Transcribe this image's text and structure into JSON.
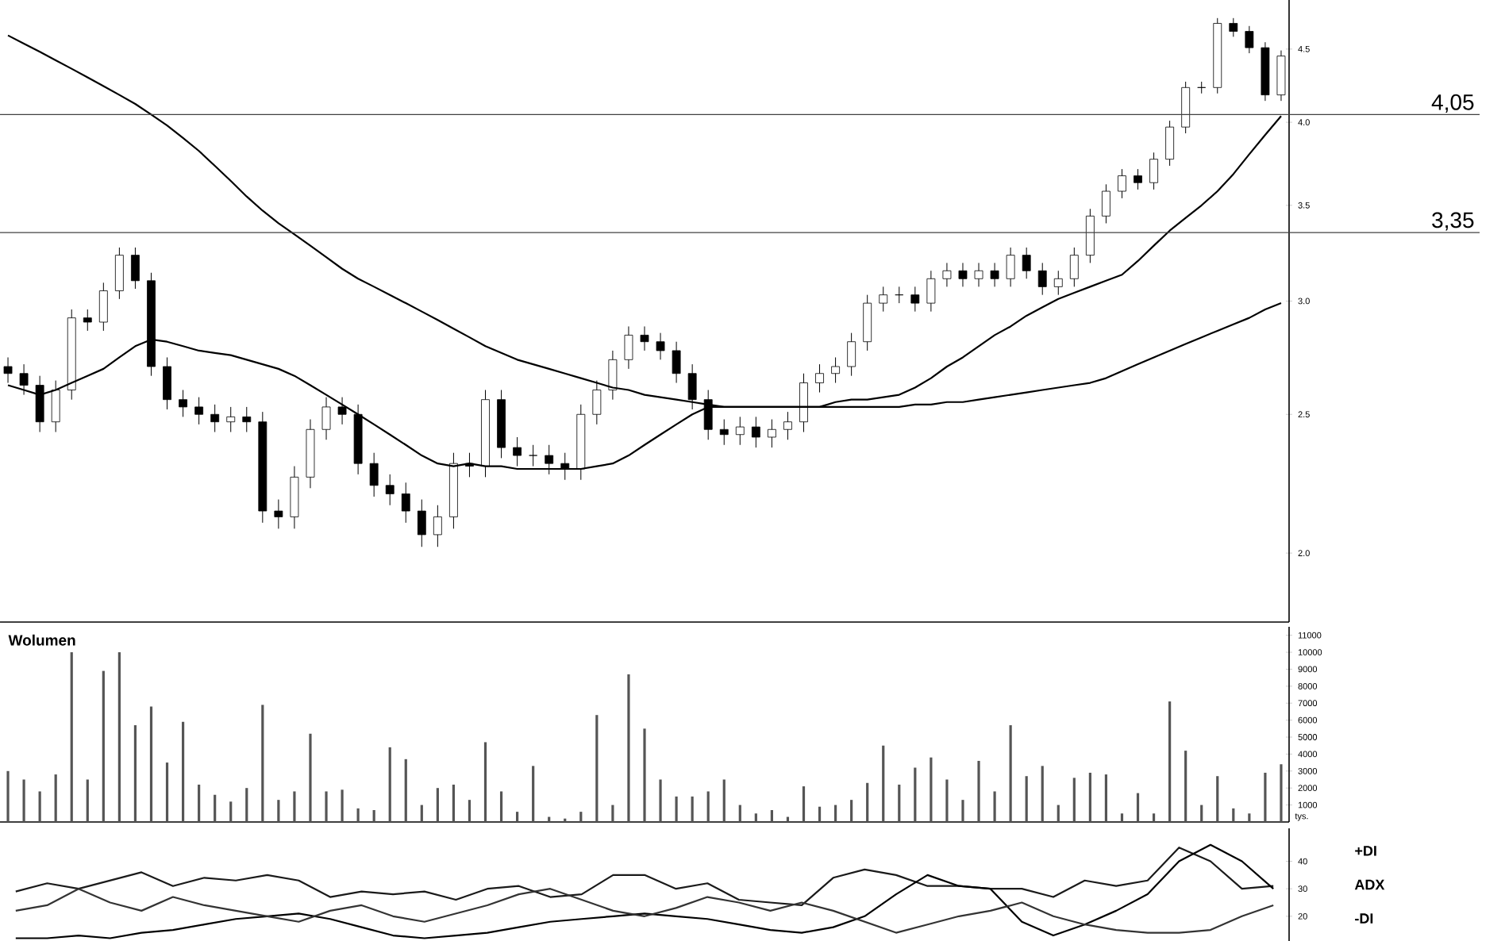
{
  "chart_data": [
    {
      "type": "candlestick",
      "log": "y",
      "tick_labels": "y",
      "categories": [
        null,
        null,
        null,
        null,
        null,
        null,
        null,
        null,
        null,
        null,
        null,
        null,
        null,
        null,
        null,
        null,
        null,
        null,
        null,
        null,
        null,
        null,
        null,
        null,
        null,
        null,
        null,
        null,
        null,
        null,
        null,
        null,
        null,
        null,
        null,
        null,
        null,
        null,
        null,
        null,
        null,
        null,
        null,
        null,
        null,
        null,
        null,
        null,
        null,
        null,
        null,
        null,
        null,
        null,
        null,
        null,
        null,
        null,
        null,
        null,
        null,
        null,
        null,
        null,
        null,
        null,
        null,
        null,
        null,
        null,
        null,
        null,
        null,
        null,
        null,
        null,
        null,
        null,
        null,
        null,
        null
      ],
      "ohlc": [
        [
          2.7,
          2.74,
          2.63,
          2.67
        ],
        [
          2.67,
          2.71,
          2.58,
          2.62
        ],
        [
          2.62,
          2.66,
          2.43,
          2.47
        ],
        [
          2.47,
          2.64,
          2.43,
          2.6
        ],
        [
          2.6,
          2.96,
          2.56,
          2.92
        ],
        [
          2.92,
          2.96,
          2.86,
          2.9
        ],
        [
          2.9,
          3.09,
          2.86,
          3.05
        ],
        [
          3.05,
          3.27,
          3.01,
          3.23
        ],
        [
          3.23,
          3.27,
          3.06,
          3.1
        ],
        [
          3.1,
          3.14,
          2.66,
          2.7
        ],
        [
          2.7,
          2.74,
          2.52,
          2.56
        ],
        [
          2.56,
          2.6,
          2.49,
          2.53
        ],
        [
          2.53,
          2.57,
          2.46,
          2.5
        ],
        [
          2.5,
          2.54,
          2.43,
          2.47
        ],
        [
          2.47,
          2.53,
          2.43,
          2.49
        ],
        [
          2.49,
          2.53,
          2.43,
          2.47
        ],
        [
          2.47,
          2.51,
          2.1,
          2.14
        ],
        [
          2.14,
          2.18,
          2.08,
          2.12
        ],
        [
          2.12,
          2.3,
          2.08,
          2.26
        ],
        [
          2.26,
          2.48,
          2.22,
          2.44
        ],
        [
          2.44,
          2.57,
          2.4,
          2.53
        ],
        [
          2.53,
          2.57,
          2.46,
          2.5
        ],
        [
          2.5,
          2.54,
          2.27,
          2.31
        ],
        [
          2.31,
          2.35,
          2.19,
          2.23
        ],
        [
          2.23,
          2.27,
          2.16,
          2.2
        ],
        [
          2.2,
          2.24,
          2.1,
          2.14
        ],
        [
          2.14,
          2.18,
          2.02,
          2.06
        ],
        [
          2.06,
          2.16,
          2.02,
          2.12
        ],
        [
          2.12,
          2.35,
          2.08,
          2.31
        ],
        [
          2.31,
          2.35,
          2.26,
          2.3
        ],
        [
          2.3,
          2.6,
          2.26,
          2.56
        ],
        [
          2.56,
          2.6,
          2.33,
          2.37
        ],
        [
          2.37,
          2.41,
          2.3,
          2.34
        ],
        [
          2.34,
          2.38,
          2.3,
          2.34
        ],
        [
          2.34,
          2.38,
          2.27,
          2.31
        ],
        [
          2.31,
          2.35,
          2.25,
          2.29
        ],
        [
          2.29,
          2.54,
          2.25,
          2.5
        ],
        [
          2.5,
          2.64,
          2.46,
          2.6
        ],
        [
          2.6,
          2.77,
          2.56,
          2.73
        ],
        [
          2.73,
          2.88,
          2.69,
          2.84
        ],
        [
          2.84,
          2.88,
          2.77,
          2.81
        ],
        [
          2.81,
          2.85,
          2.73,
          2.77
        ],
        [
          2.77,
          2.81,
          2.63,
          2.67
        ],
        [
          2.67,
          2.71,
          2.52,
          2.56
        ],
        [
          2.56,
          2.6,
          2.4,
          2.44
        ],
        [
          2.44,
          2.48,
          2.38,
          2.42
        ],
        [
          2.42,
          2.49,
          2.38,
          2.45
        ],
        [
          2.45,
          2.49,
          2.37,
          2.41
        ],
        [
          2.41,
          2.48,
          2.37,
          2.44
        ],
        [
          2.44,
          2.51,
          2.4,
          2.47
        ],
        [
          2.47,
          2.67,
          2.43,
          2.63
        ],
        [
          2.63,
          2.71,
          2.59,
          2.67
        ],
        [
          2.67,
          2.74,
          2.63,
          2.7
        ],
        [
          2.7,
          2.85,
          2.66,
          2.81
        ],
        [
          2.81,
          3.03,
          2.77,
          2.99
        ],
        [
          2.99,
          3.07,
          2.95,
          3.03
        ],
        [
          3.03,
          3.07,
          2.99,
          3.03
        ],
        [
          3.03,
          3.07,
          2.95,
          2.99
        ],
        [
          2.99,
          3.15,
          2.95,
          3.11
        ],
        [
          3.11,
          3.19,
          3.07,
          3.15
        ],
        [
          3.15,
          3.19,
          3.07,
          3.11
        ],
        [
          3.11,
          3.19,
          3.07,
          3.15
        ],
        [
          3.15,
          3.19,
          3.07,
          3.11
        ],
        [
          3.11,
          3.27,
          3.07,
          3.23
        ],
        [
          3.23,
          3.27,
          3.11,
          3.15
        ],
        [
          3.15,
          3.19,
          3.03,
          3.07
        ],
        [
          3.07,
          3.15,
          3.03,
          3.11
        ],
        [
          3.11,
          3.27,
          3.07,
          3.23
        ],
        [
          3.23,
          3.48,
          3.19,
          3.44
        ],
        [
          3.44,
          3.62,
          3.4,
          3.58
        ],
        [
          3.58,
          3.71,
          3.54,
          3.67
        ],
        [
          3.67,
          3.71,
          3.59,
          3.63
        ],
        [
          3.63,
          3.81,
          3.59,
          3.77
        ],
        [
          3.77,
          4.01,
          3.73,
          3.97
        ],
        [
          3.97,
          4.27,
          3.93,
          4.23
        ],
        [
          4.23,
          4.27,
          4.19,
          4.23
        ],
        [
          4.23,
          4.73,
          4.19,
          4.69
        ],
        [
          4.69,
          4.73,
          4.59,
          4.63
        ],
        [
          4.63,
          4.67,
          4.47,
          4.51
        ],
        [
          4.51,
          4.55,
          4.14,
          4.18
        ],
        [
          4.18,
          4.49,
          4.14,
          4.45
        ]
      ],
      "series": [
        {
          "type": "line",
          "color": "#000000",
          "values": [
            4.6,
            4.54,
            4.48,
            4.42,
            4.36,
            4.3,
            4.24,
            4.18,
            4.12,
            4.05,
            3.98,
            3.9,
            3.82,
            3.73,
            3.64,
            3.55,
            3.47,
            3.4,
            3.34,
            3.28,
            3.22,
            3.16,
            3.11,
            3.07,
            3.03,
            2.99,
            2.95,
            2.91,
            2.87,
            2.83,
            2.79,
            2.76,
            2.73,
            2.71,
            2.69,
            2.67,
            2.65,
            2.63,
            2.61,
            2.6,
            2.58,
            2.57,
            2.56,
            2.55,
            2.54,
            2.53,
            2.53,
            2.53,
            2.53,
            2.53,
            2.53,
            2.53,
            2.53,
            2.53,
            2.53,
            2.53,
            2.53,
            2.54,
            2.54,
            2.55,
            2.55,
            2.56,
            2.57,
            2.58,
            2.59,
            2.6,
            2.61,
            2.62,
            2.63,
            2.65,
            2.68,
            2.71,
            2.74,
            2.77,
            2.8,
            2.83,
            2.86,
            2.89,
            2.92,
            2.96,
            2.99
          ]
        },
        {
          "type": "line",
          "color": "#000000",
          "values": [
            2.62,
            2.6,
            2.58,
            2.6,
            2.63,
            2.66,
            2.69,
            2.74,
            2.79,
            2.82,
            2.81,
            2.79,
            2.77,
            2.76,
            2.75,
            2.73,
            2.71,
            2.69,
            2.66,
            2.62,
            2.58,
            2.54,
            2.5,
            2.46,
            2.42,
            2.38,
            2.34,
            2.31,
            2.3,
            2.31,
            2.3,
            2.3,
            2.29,
            2.29,
            2.29,
            2.29,
            2.29,
            2.3,
            2.31,
            2.34,
            2.38,
            2.42,
            2.46,
            2.5,
            2.53,
            2.53,
            2.53,
            2.53,
            2.53,
            2.53,
            2.53,
            2.53,
            2.55,
            2.56,
            2.56,
            2.57,
            2.58,
            2.61,
            2.65,
            2.7,
            2.74,
            2.79,
            2.84,
            2.88,
            2.93,
            2.97,
            3.01,
            3.04,
            3.07,
            3.1,
            3.13,
            3.2,
            3.28,
            3.36,
            3.43,
            3.5,
            3.58,
            3.68,
            3.8,
            3.92,
            4.04
          ]
        }
      ],
      "ylim": [
        1.79,
        4.87
      ],
      "yticks": [
        {
          "value": 2,
          "label": "2.0"
        },
        {
          "value": 2.5,
          "label": "2.5"
        },
        {
          "value": 3,
          "label": "3.0"
        },
        {
          "value": 3.5,
          "label": "3.5"
        },
        {
          "value": 4,
          "label": "4.0"
        },
        {
          "value": 4.5,
          "label": "4.5"
        }
      ],
      "ref_lines": [
        {
          "axis": "y",
          "value": 3.35,
          "label": "3,35"
        },
        {
          "axis": "y",
          "value": 4.05,
          "label": "4,05"
        }
      ]
    },
    {
      "type": "bar",
      "title": "Wolumen",
      "ylabel": "tys.",
      "tick_labels": "y",
      "color": "#555555",
      "categories": [
        null,
        null,
        null,
        null,
        null,
        null,
        null,
        null,
        null,
        null,
        null,
        null,
        null,
        null,
        null,
        null,
        null,
        null,
        null,
        null,
        null,
        null,
        null,
        null,
        null,
        null,
        null,
        null,
        null,
        null,
        null,
        null,
        null,
        null,
        null,
        null,
        null,
        null,
        null,
        null,
        null,
        null,
        null,
        null,
        null,
        null,
        null,
        null,
        null,
        null,
        null,
        null,
        null,
        null,
        null,
        null,
        null,
        null,
        null,
        null,
        null,
        null,
        null,
        null,
        null,
        null,
        null,
        null,
        null,
        null,
        null,
        null,
        null,
        null,
        null,
        null,
        null,
        null,
        null,
        null,
        null
      ],
      "values": [
        3000,
        2500,
        1800,
        2800,
        10000,
        2500,
        8900,
        10000,
        5700,
        6800,
        3500,
        5900,
        2200,
        1600,
        1200,
        2000,
        6900,
        1300,
        1800,
        5200,
        1800,
        1900,
        800,
        700,
        4400,
        3700,
        1000,
        2000,
        2200,
        1300,
        4700,
        1800,
        600,
        3300,
        300,
        200,
        600,
        6300,
        1000,
        8700,
        5500,
        2500,
        1500,
        1500,
        1800,
        2500,
        1000,
        500,
        700,
        300,
        2100,
        900,
        1000,
        1300,
        2300,
        4500,
        2200,
        3200,
        3800,
        2500,
        1300,
        3600,
        1800,
        5700,
        2700,
        3300,
        1000,
        2600,
        2900,
        2800,
        500,
        1700,
        500,
        7100,
        4200,
        1000,
        2700,
        800,
        500,
        2900,
        3400
      ],
      "ylim": [
        0,
        11500
      ],
      "yticks": [
        1000,
        2000,
        3000,
        4000,
        5000,
        6000,
        7000,
        8000,
        9000,
        10000,
        11000
      ]
    },
    {
      "type": "line",
      "tick_labels": "y",
      "marker": "none",
      "line_style": "solid",
      "categories": [
        null,
        null,
        null,
        null,
        null,
        null,
        null,
        null,
        null,
        null,
        null,
        null,
        null,
        null,
        null,
        null,
        null,
        null,
        null,
        null,
        null,
        null,
        null,
        null,
        null,
        null,
        null,
        null,
        null,
        null,
        null,
        null,
        null,
        null,
        null,
        null,
        null,
        null,
        null,
        null,
        null
      ],
      "series": [
        {
          "name": "+DI",
          "color": "#1a1a1a",
          "values": [
            29,
            32,
            30,
            33,
            36,
            31,
            34,
            33,
            35,
            33,
            27,
            29,
            28,
            29,
            26,
            30,
            31,
            27,
            28,
            35,
            35,
            30,
            32,
            26,
            25,
            24,
            34,
            37,
            35,
            31,
            31,
            30,
            30,
            27,
            33,
            31,
            33,
            45,
            40,
            30,
            31
          ]
        },
        {
          "name": "ADX",
          "color": "#000000",
          "values": [
            12,
            12,
            13,
            12,
            14,
            15,
            17,
            19,
            20,
            21,
            19,
            16,
            13,
            12,
            13,
            14,
            16,
            18,
            19,
            20,
            21,
            20,
            19,
            17,
            15,
            14,
            16,
            20,
            28,
            35,
            31,
            30,
            18,
            13,
            17,
            22,
            28,
            40,
            46,
            40,
            30
          ]
        },
        {
          "name": "-DI",
          "color": "#333333",
          "values": [
            22,
            24,
            30,
            25,
            22,
            27,
            24,
            22,
            20,
            18,
            22,
            24,
            20,
            18,
            21,
            24,
            28,
            30,
            26,
            22,
            20,
            23,
            27,
            25,
            22,
            25,
            22,
            18,
            14,
            17,
            20,
            22,
            25,
            20,
            17,
            15,
            14,
            14,
            15,
            20,
            24
          ]
        }
      ],
      "ylim": [
        11,
        52
      ],
      "yticks": [
        20,
        30,
        40
      ]
    }
  ]
}
